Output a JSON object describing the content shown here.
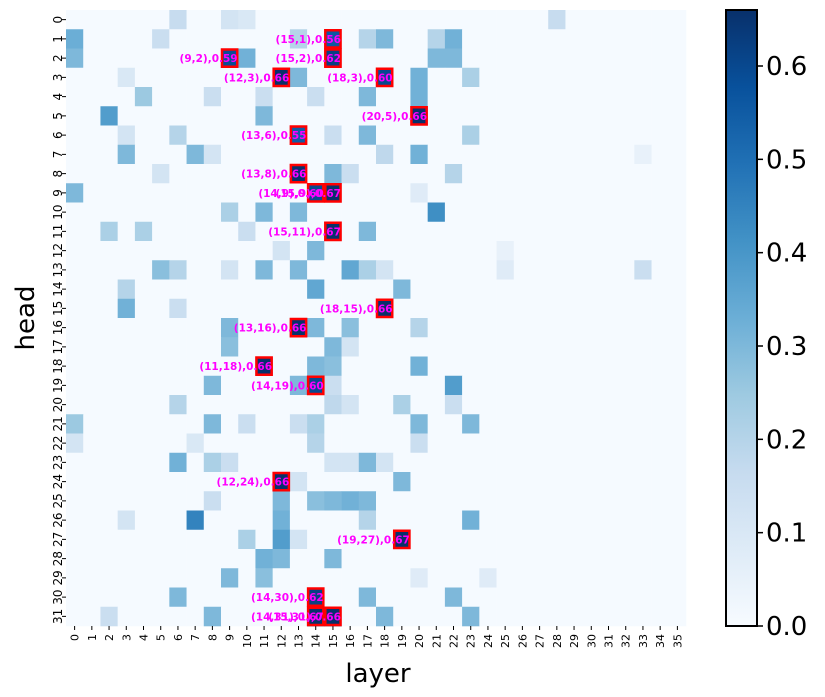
{
  "chart_data": {
    "type": "heatmap",
    "xlabel": "layer",
    "ylabel": "head",
    "x_categories": [
      "0",
      "1",
      "2",
      "3",
      "4",
      "5",
      "6",
      "7",
      "8",
      "9",
      "10",
      "11",
      "12",
      "13",
      "14",
      "15",
      "16",
      "17",
      "18",
      "19",
      "20",
      "21",
      "22",
      "23",
      "24",
      "25",
      "26",
      "27",
      "28",
      "29",
      "30",
      "31",
      "32",
      "33",
      "34",
      "35"
    ],
    "y_categories": [
      "0",
      "1",
      "2",
      "3",
      "4",
      "5",
      "6",
      "7",
      "8",
      "9",
      "10",
      "11",
      "12",
      "13",
      "14",
      "15",
      "16",
      "17",
      "18",
      "19",
      "20",
      "21",
      "22",
      "23",
      "24",
      "25",
      "26",
      "27",
      "28",
      "29",
      "30",
      "31"
    ],
    "colormap": "Blues",
    "colorbar": {
      "range": [
        0.0,
        0.66
      ],
      "ticks": [
        0.0,
        0.1,
        0.2,
        0.3,
        0.4,
        0.5,
        0.6
      ],
      "tick_labels": [
        "0.0",
        "0.1",
        "0.2",
        "0.3",
        "0.4",
        "0.5",
        "0.6"
      ]
    },
    "cells": [
      {
        "l": 6,
        "h": 0,
        "v": 0.16
      },
      {
        "l": 9,
        "h": 0,
        "v": 0.12
      },
      {
        "l": 10,
        "h": 0,
        "v": 0.1
      },
      {
        "l": 28,
        "h": 0,
        "v": 0.16
      },
      {
        "l": 0,
        "h": 1,
        "v": 0.33
      },
      {
        "l": 5,
        "h": 1,
        "v": 0.15
      },
      {
        "l": 13,
        "h": 1,
        "v": 0.2
      },
      {
        "l": 15,
        "h": 1,
        "v": 0.56
      },
      {
        "l": 17,
        "h": 1,
        "v": 0.2
      },
      {
        "l": 18,
        "h": 1,
        "v": 0.3
      },
      {
        "l": 21,
        "h": 1,
        "v": 0.2
      },
      {
        "l": 22,
        "h": 1,
        "v": 0.32
      },
      {
        "l": 0,
        "h": 2,
        "v": 0.3
      },
      {
        "l": 9,
        "h": 2,
        "v": 0.59
      },
      {
        "l": 10,
        "h": 2,
        "v": 0.32
      },
      {
        "l": 15,
        "h": 2,
        "v": 0.62
      },
      {
        "l": 21,
        "h": 2,
        "v": 0.3
      },
      {
        "l": 22,
        "h": 2,
        "v": 0.3
      },
      {
        "l": 3,
        "h": 3,
        "v": 0.1
      },
      {
        "l": 12,
        "h": 3,
        "v": 0.66
      },
      {
        "l": 13,
        "h": 3,
        "v": 0.3
      },
      {
        "l": 18,
        "h": 3,
        "v": 0.6
      },
      {
        "l": 20,
        "h": 3,
        "v": 0.32
      },
      {
        "l": 23,
        "h": 3,
        "v": 0.22
      },
      {
        "l": 4,
        "h": 4,
        "v": 0.25
      },
      {
        "l": 8,
        "h": 4,
        "v": 0.15
      },
      {
        "l": 11,
        "h": 4,
        "v": 0.15
      },
      {
        "l": 14,
        "h": 4,
        "v": 0.15
      },
      {
        "l": 17,
        "h": 4,
        "v": 0.3
      },
      {
        "l": 20,
        "h": 4,
        "v": 0.32
      },
      {
        "l": 2,
        "h": 5,
        "v": 0.38
      },
      {
        "l": 11,
        "h": 5,
        "v": 0.3
      },
      {
        "l": 20,
        "h": 5,
        "v": 0.66
      },
      {
        "l": 3,
        "h": 6,
        "v": 0.12
      },
      {
        "l": 6,
        "h": 6,
        "v": 0.2
      },
      {
        "l": 13,
        "h": 6,
        "v": 0.55
      },
      {
        "l": 15,
        "h": 6,
        "v": 0.15
      },
      {
        "l": 17,
        "h": 6,
        "v": 0.3
      },
      {
        "l": 23,
        "h": 6,
        "v": 0.22
      },
      {
        "l": 3,
        "h": 7,
        "v": 0.3
      },
      {
        "l": 7,
        "h": 7,
        "v": 0.3
      },
      {
        "l": 8,
        "h": 7,
        "v": 0.12
      },
      {
        "l": 18,
        "h": 7,
        "v": 0.18
      },
      {
        "l": 20,
        "h": 7,
        "v": 0.32
      },
      {
        "l": 33,
        "h": 7,
        "v": 0.05
      },
      {
        "l": 5,
        "h": 8,
        "v": 0.12
      },
      {
        "l": 13,
        "h": 8,
        "v": 0.66
      },
      {
        "l": 15,
        "h": 8,
        "v": 0.3
      },
      {
        "l": 16,
        "h": 8,
        "v": 0.15
      },
      {
        "l": 22,
        "h": 8,
        "v": 0.2
      },
      {
        "l": 0,
        "h": 9,
        "v": 0.3
      },
      {
        "l": 14,
        "h": 9,
        "v": 0.6
      },
      {
        "l": 15,
        "h": 9,
        "v": 0.67
      },
      {
        "l": 20,
        "h": 9,
        "v": 0.08
      },
      {
        "l": 9,
        "h": 10,
        "v": 0.22
      },
      {
        "l": 11,
        "h": 10,
        "v": 0.3
      },
      {
        "l": 13,
        "h": 10,
        "v": 0.3
      },
      {
        "l": 21,
        "h": 10,
        "v": 0.42
      },
      {
        "l": 2,
        "h": 11,
        "v": 0.22
      },
      {
        "l": 4,
        "h": 11,
        "v": 0.22
      },
      {
        "l": 10,
        "h": 11,
        "v": 0.15
      },
      {
        "l": 15,
        "h": 11,
        "v": 0.67
      },
      {
        "l": 17,
        "h": 11,
        "v": 0.3
      },
      {
        "l": 12,
        "h": 12,
        "v": 0.12
      },
      {
        "l": 14,
        "h": 12,
        "v": 0.3
      },
      {
        "l": 25,
        "h": 12,
        "v": 0.05
      },
      {
        "l": 5,
        "h": 13,
        "v": 0.28
      },
      {
        "l": 6,
        "h": 13,
        "v": 0.2
      },
      {
        "l": 9,
        "h": 13,
        "v": 0.12
      },
      {
        "l": 11,
        "h": 13,
        "v": 0.3
      },
      {
        "l": 13,
        "h": 13,
        "v": 0.3
      },
      {
        "l": 16,
        "h": 13,
        "v": 0.35
      },
      {
        "l": 17,
        "h": 13,
        "v": 0.22
      },
      {
        "l": 18,
        "h": 13,
        "v": 0.12
      },
      {
        "l": 25,
        "h": 13,
        "v": 0.08
      },
      {
        "l": 33,
        "h": 13,
        "v": 0.15
      },
      {
        "l": 3,
        "h": 14,
        "v": 0.2
      },
      {
        "l": 14,
        "h": 14,
        "v": 0.35
      },
      {
        "l": 19,
        "h": 14,
        "v": 0.3
      },
      {
        "l": 3,
        "h": 15,
        "v": 0.32
      },
      {
        "l": 6,
        "h": 15,
        "v": 0.15
      },
      {
        "l": 18,
        "h": 15,
        "v": 0.66
      },
      {
        "l": 9,
        "h": 16,
        "v": 0.3
      },
      {
        "l": 13,
        "h": 16,
        "v": 0.66
      },
      {
        "l": 14,
        "h": 16,
        "v": 0.3
      },
      {
        "l": 16,
        "h": 16,
        "v": 0.28
      },
      {
        "l": 20,
        "h": 16,
        "v": 0.2
      },
      {
        "l": 9,
        "h": 17,
        "v": 0.28
      },
      {
        "l": 15,
        "h": 17,
        "v": 0.3
      },
      {
        "l": 16,
        "h": 17,
        "v": 0.12
      },
      {
        "l": 11,
        "h": 18,
        "v": 0.66
      },
      {
        "l": 14,
        "h": 18,
        "v": 0.3
      },
      {
        "l": 15,
        "h": 18,
        "v": 0.28
      },
      {
        "l": 20,
        "h": 18,
        "v": 0.32
      },
      {
        "l": 8,
        "h": 19,
        "v": 0.3
      },
      {
        "l": 13,
        "h": 19,
        "v": 0.3
      },
      {
        "l": 14,
        "h": 19,
        "v": 0.6
      },
      {
        "l": 15,
        "h": 19,
        "v": 0.15
      },
      {
        "l": 22,
        "h": 19,
        "v": 0.38
      },
      {
        "l": 6,
        "h": 20,
        "v": 0.2
      },
      {
        "l": 15,
        "h": 20,
        "v": 0.18
      },
      {
        "l": 16,
        "h": 20,
        "v": 0.12
      },
      {
        "l": 19,
        "h": 20,
        "v": 0.22
      },
      {
        "l": 22,
        "h": 20,
        "v": 0.15
      },
      {
        "l": 0,
        "h": 21,
        "v": 0.25
      },
      {
        "l": 8,
        "h": 21,
        "v": 0.3
      },
      {
        "l": 10,
        "h": 21,
        "v": 0.15
      },
      {
        "l": 13,
        "h": 21,
        "v": 0.15
      },
      {
        "l": 14,
        "h": 21,
        "v": 0.22
      },
      {
        "l": 20,
        "h": 21,
        "v": 0.3
      },
      {
        "l": 23,
        "h": 21,
        "v": 0.3
      },
      {
        "l": 0,
        "h": 22,
        "v": 0.12
      },
      {
        "l": 7,
        "h": 22,
        "v": 0.1
      },
      {
        "l": 14,
        "h": 22,
        "v": 0.2
      },
      {
        "l": 20,
        "h": 22,
        "v": 0.15
      },
      {
        "l": 6,
        "h": 23,
        "v": 0.32
      },
      {
        "l": 8,
        "h": 23,
        "v": 0.22
      },
      {
        "l": 9,
        "h": 23,
        "v": 0.15
      },
      {
        "l": 15,
        "h": 23,
        "v": 0.12
      },
      {
        "l": 16,
        "h": 23,
        "v": 0.12
      },
      {
        "l": 17,
        "h": 23,
        "v": 0.3
      },
      {
        "l": 18,
        "h": 23,
        "v": 0.12
      },
      {
        "l": 12,
        "h": 24,
        "v": 0.66
      },
      {
        "l": 13,
        "h": 24,
        "v": 0.12
      },
      {
        "l": 19,
        "h": 24,
        "v": 0.3
      },
      {
        "l": 8,
        "h": 25,
        "v": 0.15
      },
      {
        "l": 12,
        "h": 25,
        "v": 0.3
      },
      {
        "l": 14,
        "h": 25,
        "v": 0.28
      },
      {
        "l": 15,
        "h": 25,
        "v": 0.3
      },
      {
        "l": 16,
        "h": 25,
        "v": 0.32
      },
      {
        "l": 17,
        "h": 25,
        "v": 0.3
      },
      {
        "l": 3,
        "h": 26,
        "v": 0.12
      },
      {
        "l": 7,
        "h": 26,
        "v": 0.45
      },
      {
        "l": 12,
        "h": 26,
        "v": 0.32
      },
      {
        "l": 17,
        "h": 26,
        "v": 0.2
      },
      {
        "l": 23,
        "h": 26,
        "v": 0.32
      },
      {
        "l": 10,
        "h": 27,
        "v": 0.22
      },
      {
        "l": 12,
        "h": 27,
        "v": 0.38
      },
      {
        "l": 13,
        "h": 27,
        "v": 0.12
      },
      {
        "l": 19,
        "h": 27,
        "v": 0.67
      },
      {
        "l": 11,
        "h": 28,
        "v": 0.32
      },
      {
        "l": 12,
        "h": 28,
        "v": 0.3
      },
      {
        "l": 15,
        "h": 28,
        "v": 0.3
      },
      {
        "l": 9,
        "h": 29,
        "v": 0.3
      },
      {
        "l": 11,
        "h": 29,
        "v": 0.28
      },
      {
        "l": 20,
        "h": 29,
        "v": 0.08
      },
      {
        "l": 24,
        "h": 29,
        "v": 0.08
      },
      {
        "l": 6,
        "h": 30,
        "v": 0.3
      },
      {
        "l": 14,
        "h": 30,
        "v": 0.62
      },
      {
        "l": 17,
        "h": 30,
        "v": 0.3
      },
      {
        "l": 22,
        "h": 30,
        "v": 0.3
      },
      {
        "l": 2,
        "h": 31,
        "v": 0.15
      },
      {
        "l": 8,
        "h": 31,
        "v": 0.3
      },
      {
        "l": 14,
        "h": 31,
        "v": 0.67
      },
      {
        "l": 15,
        "h": 31,
        "v": 0.66
      },
      {
        "l": 18,
        "h": 31,
        "v": 0.3
      },
      {
        "l": 23,
        "h": 31,
        "v": 0.3
      }
    ],
    "annotations": [
      {
        "layer": 15,
        "head": 1,
        "label": "(15,1),0.56"
      },
      {
        "layer": 9,
        "head": 2,
        "label": "(9,2),0.59"
      },
      {
        "layer": 15,
        "head": 2,
        "label": "(15,2),0.62"
      },
      {
        "layer": 12,
        "head": 3,
        "label": "(12,3),0.66"
      },
      {
        "layer": 18,
        "head": 3,
        "label": "(18,3),0.60"
      },
      {
        "layer": 20,
        "head": 5,
        "label": "(20,5),0.66"
      },
      {
        "layer": 13,
        "head": 6,
        "label": "(13,6),0.55"
      },
      {
        "layer": 13,
        "head": 8,
        "label": "(13,8),0.66"
      },
      {
        "layer": 14,
        "head": 9,
        "label": "(14,9),0.60"
      },
      {
        "layer": 15,
        "head": 9,
        "label": "(15,9),0.67"
      },
      {
        "layer": 15,
        "head": 11,
        "label": "(15,11),0.67"
      },
      {
        "layer": 18,
        "head": 15,
        "label": "(18,15),0.66"
      },
      {
        "layer": 13,
        "head": 16,
        "label": "(13,16),0.66"
      },
      {
        "layer": 11,
        "head": 18,
        "label": "(11,18),0.66"
      },
      {
        "layer": 14,
        "head": 19,
        "label": "(14,19),0.60"
      },
      {
        "layer": 12,
        "head": 24,
        "label": "(12,24),0.66"
      },
      {
        "layer": 19,
        "head": 27,
        "label": "(19,27),0.67"
      },
      {
        "layer": 14,
        "head": 30,
        "label": "(14,30),0.62"
      },
      {
        "layer": 14,
        "head": 31,
        "label": "(14,31),0.67"
      },
      {
        "layer": 15,
        "head": 31,
        "label": "(15,31),0.66"
      }
    ],
    "annotation_color": "#ff00ff",
    "highlight_color": "#ff0000"
  }
}
